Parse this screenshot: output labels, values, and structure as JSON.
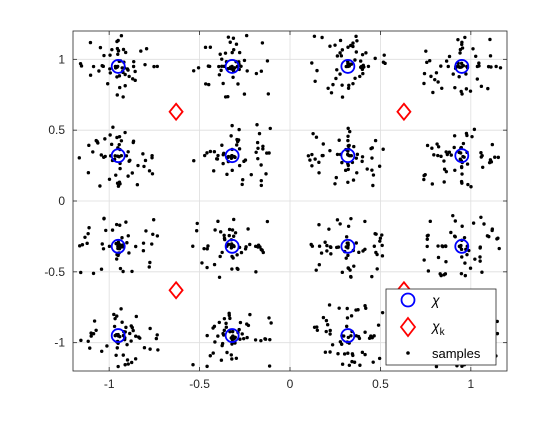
{
  "chart_data": {
    "type": "scatter",
    "title": "",
    "xlabel": "",
    "ylabel": "",
    "xlim": [
      -1.2,
      1.2
    ],
    "ylim": [
      -1.2,
      1.2
    ],
    "xticks": [
      -1,
      -0.5,
      0,
      0.5,
      1
    ],
    "yticks": [
      -1,
      -0.5,
      0,
      0.5,
      1
    ],
    "xtick_labels": [
      "-1",
      "-0.5",
      "0",
      "0.5",
      "1"
    ],
    "ytick_labels": [
      "-1",
      "-0.5",
      "0",
      "0.5",
      "1"
    ],
    "grid": true,
    "legend_position": "bottom-right",
    "series": [
      {
        "name": "χ",
        "marker": "circle",
        "color": "#0000ff",
        "x": [
          -0.95,
          -0.32,
          0.32,
          0.95,
          -0.95,
          -0.32,
          0.32,
          0.95,
          -0.95,
          -0.32,
          0.32,
          0.95,
          -0.95,
          -0.32,
          0.32,
          0.95
        ],
        "y": [
          0.95,
          0.95,
          0.95,
          0.95,
          0.32,
          0.32,
          0.32,
          0.32,
          -0.32,
          -0.32,
          -0.32,
          -0.32,
          -0.95,
          -0.95,
          -0.95,
          -0.95
        ]
      },
      {
        "name": "χ",
        "name_subscript": "k",
        "marker": "diamond",
        "color": "#ff0000",
        "x": [
          -0.63,
          0.63,
          -0.63,
          0.63
        ],
        "y": [
          0.63,
          0.63,
          -0.63,
          -0.63
        ]
      },
      {
        "name": "samples",
        "marker": "dot",
        "color": "#000000",
        "cluster_centers": "series 0 points",
        "points_per_cluster": 55
      }
    ]
  }
}
